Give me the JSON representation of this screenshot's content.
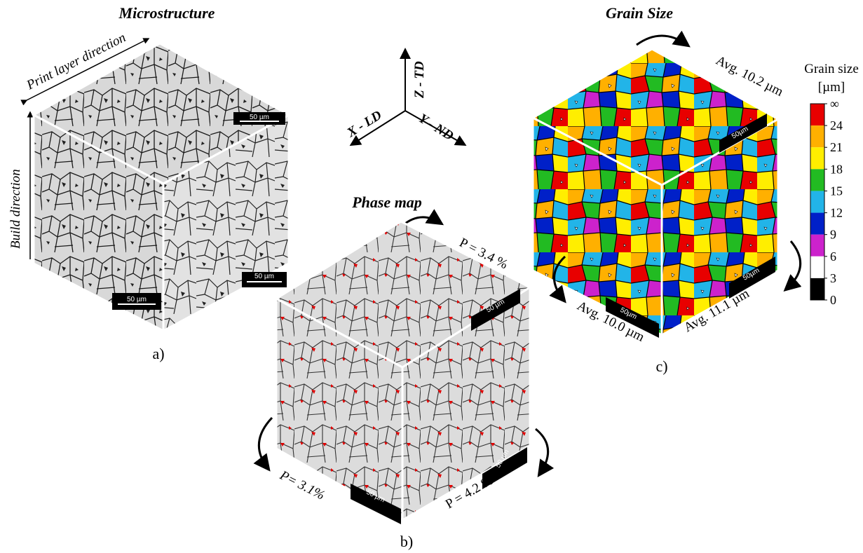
{
  "panel_a": {
    "title": "Microstructure",
    "print_layer_label": "Print layer direction",
    "build_label": "Build direction",
    "scale_top": "50 µm",
    "scale_right": "50 µm",
    "scale_left": "50 µm",
    "caption": "a)"
  },
  "axes": {
    "z": "Z - TD",
    "x": "X - LD",
    "y": "Y - ND"
  },
  "panel_b": {
    "title": "Phase map",
    "p_top": "P = 3.4 %",
    "p_left": "P= 3.1%",
    "p_right": "P = 4.2 %",
    "scale_top": "50 µm",
    "scale_right": "50 µm",
    "scale_left": "50 µm",
    "caption": "b)",
    "phase_color": "#e00000"
  },
  "panel_c": {
    "title": "Grain Size",
    "avg_top": "Avg. 10.2 µm",
    "avg_left": "Avg. 10.0 µm",
    "avg_right": "Avg. 11.1 µm",
    "scale_top": "50µm",
    "scale_right": "50µm",
    "scale_left": "50µm",
    "caption": "c)"
  },
  "colorbar": {
    "title_line1": "Grain size",
    "title_line2": "[µm]",
    "ticks": [
      "∞",
      "24",
      "21",
      "18",
      "15",
      "12",
      "9",
      "6",
      "3",
      "0"
    ],
    "colors": [
      "#e80000",
      "#ffb000",
      "#ffee00",
      "#22bb22",
      "#22b4e8",
      "#0020c8",
      "#cc22cc",
      "#ffffff",
      "#000000"
    ]
  }
}
